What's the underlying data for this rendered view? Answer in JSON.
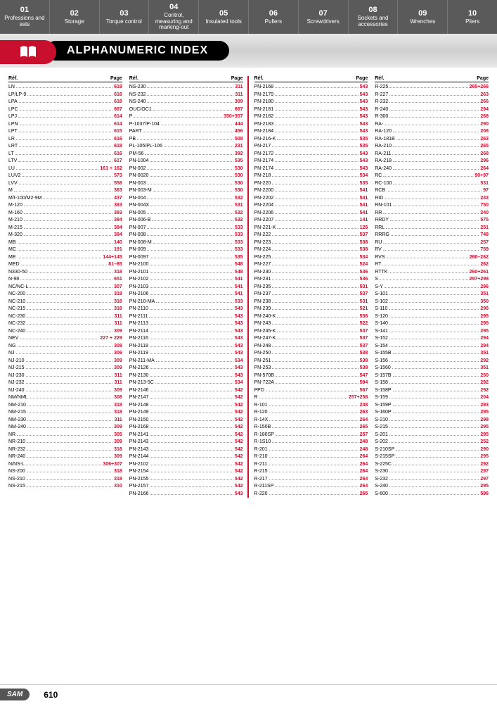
{
  "nav": [
    {
      "num": "01",
      "label": "Professions and sets"
    },
    {
      "num": "02",
      "label": "Storage"
    },
    {
      "num": "03",
      "label": "Torque control"
    },
    {
      "num": "04",
      "label": "Control, measuring and marking-out"
    },
    {
      "num": "05",
      "label": "Insulated tools"
    },
    {
      "num": "06",
      "label": "Pullers"
    },
    {
      "num": "07",
      "label": "Screwdrivers"
    },
    {
      "num": "08",
      "label": "Sockets and accessories"
    },
    {
      "num": "09",
      "label": "Wrenches"
    },
    {
      "num": "10",
      "label": "Pliers"
    }
  ],
  "title": "ALPHANUMERIC INDEX",
  "header_ref": "Réf.",
  "header_page": "Page",
  "columns": [
    [
      {
        "r": "LN",
        "p": "618"
      },
      {
        "r": "LP/LP-9",
        "p": "618"
      },
      {
        "r": "LPA",
        "p": "618"
      },
      {
        "r": "LPC",
        "p": "667"
      },
      {
        "r": "LPJ",
        "p": "614"
      },
      {
        "r": "LPN",
        "p": "614"
      },
      {
        "r": "LPT",
        "p": "615"
      },
      {
        "r": "LR",
        "p": "616"
      },
      {
        "r": "LRT",
        "p": "618"
      },
      {
        "r": "LT",
        "p": "616"
      },
      {
        "r": "LTV",
        "p": "617"
      },
      {
        "r": "LU",
        "p": "161 + 162"
      },
      {
        "r": "LUV2",
        "p": "573"
      },
      {
        "r": "LVV",
        "p": "558"
      },
      {
        "r": "M",
        "p": "383"
      },
      {
        "r": "M/I-100/M2-9M",
        "p": "437"
      },
      {
        "r": "M-120",
        "p": "383"
      },
      {
        "r": "M-160",
        "p": "383"
      },
      {
        "r": "M-210",
        "p": "384"
      },
      {
        "r": "M-215",
        "p": "384"
      },
      {
        "r": "M-320",
        "p": "384"
      },
      {
        "r": "MB",
        "p": "140"
      },
      {
        "r": "MC",
        "p": "191"
      },
      {
        "r": "ME",
        "p": "144+145"
      },
      {
        "r": "MED",
        "p": "81–85"
      },
      {
        "r": "N330-50",
        "p": "318"
      },
      {
        "r": "N-98",
        "p": "651"
      },
      {
        "r": "NC/NC-L",
        "p": "307"
      },
      {
        "r": "NC-200",
        "p": "318"
      },
      {
        "r": "NC-210",
        "p": "318"
      },
      {
        "r": "NC-215",
        "p": "318"
      },
      {
        "r": "NC-230",
        "p": "311"
      },
      {
        "r": "NC-232",
        "p": "311"
      },
      {
        "r": "NC-240",
        "p": "309"
      },
      {
        "r": "NEV",
        "p": "227 + 229"
      },
      {
        "r": "NG",
        "p": "308"
      },
      {
        "r": "NJ",
        "p": "306"
      },
      {
        "r": "NJ-210",
        "p": "309"
      },
      {
        "r": "NJ-215",
        "p": "309"
      },
      {
        "r": "NJ-230",
        "p": "311"
      },
      {
        "r": "NJ-232",
        "p": "311"
      },
      {
        "r": "NJ-240",
        "p": "309"
      },
      {
        "r": "NM/NML",
        "p": "308"
      },
      {
        "r": "NM-210",
        "p": "318"
      },
      {
        "r": "NM-215",
        "p": "318"
      },
      {
        "r": "NM-230",
        "p": "311"
      },
      {
        "r": "NM-240",
        "p": "309"
      },
      {
        "r": "NR",
        "p": "305"
      },
      {
        "r": "NR-210",
        "p": "309"
      },
      {
        "r": "NR-232",
        "p": "318"
      },
      {
        "r": "NR-240",
        "p": "309"
      },
      {
        "r": "N/NS-L",
        "p": "306+307"
      },
      {
        "r": "NS-200",
        "p": "318"
      },
      {
        "r": "NS-210",
        "p": "318"
      },
      {
        "r": "NS-215",
        "p": "310"
      }
    ],
    [
      {
        "r": "NS-230",
        "p": "311"
      },
      {
        "r": "NS-232",
        "p": "311"
      },
      {
        "r": "NS-240",
        "p": "309"
      },
      {
        "r": "OUC/OC1",
        "p": "667"
      },
      {
        "r": "P",
        "p": "350+357"
      },
      {
        "r": "P-1037/P-104",
        "p": "444"
      },
      {
        "r": "PART",
        "p": "456"
      },
      {
        "r": "PB",
        "p": "508"
      },
      {
        "r": "PL-105/PL-106",
        "p": "231"
      },
      {
        "r": "PM-56",
        "p": "392"
      },
      {
        "r": "PN-1004",
        "p": "535"
      },
      {
        "r": "PN-002",
        "p": "530"
      },
      {
        "r": "PN-0020",
        "p": "530"
      },
      {
        "r": "PN-003",
        "p": "530"
      },
      {
        "r": "PN-003-M",
        "p": "530"
      },
      {
        "r": "PN-004",
        "p": "532"
      },
      {
        "r": "PN-004X",
        "p": "531"
      },
      {
        "r": "PN-005",
        "p": "532"
      },
      {
        "r": "PN-006-B",
        "p": "532"
      },
      {
        "r": "PN-007",
        "p": "533"
      },
      {
        "r": "PN-008",
        "p": "533"
      },
      {
        "r": "PN-008-M",
        "p": "533"
      },
      {
        "r": "PN-009",
        "p": "533"
      },
      {
        "r": "PN-0097",
        "p": "535"
      },
      {
        "r": "PN-2100",
        "p": "548"
      },
      {
        "r": "PN-2101",
        "p": "548"
      },
      {
        "r": "PN-2102",
        "p": "541"
      },
      {
        "r": "PN-2103",
        "p": "541"
      },
      {
        "r": "PN-2106",
        "p": "541"
      },
      {
        "r": "PN-210-MA",
        "p": "533"
      },
      {
        "r": "PN-2110",
        "p": "543"
      },
      {
        "r": "PN-2111",
        "p": "543"
      },
      {
        "r": "PN-2113",
        "p": "543"
      },
      {
        "r": "PN-2114",
        "p": "543"
      },
      {
        "r": "PN-2116",
        "p": "543"
      },
      {
        "r": "PN-2118",
        "p": "543"
      },
      {
        "r": "PN-2119",
        "p": "543"
      },
      {
        "r": "PN-211-MA",
        "p": "534"
      },
      {
        "r": "PN-2126",
        "p": "543"
      },
      {
        "r": "PN-2130",
        "p": "543"
      },
      {
        "r": "PN-213-5C",
        "p": "534"
      },
      {
        "r": "PN-2146",
        "p": "542"
      },
      {
        "r": "PN-2147",
        "p": "542"
      },
      {
        "r": "PN-2148",
        "p": "542"
      },
      {
        "r": "PN-2149",
        "p": "542"
      },
      {
        "r": "PN-2150",
        "p": "542"
      },
      {
        "r": "PN-2168",
        "p": "542"
      },
      {
        "r": "PN-2141",
        "p": "542"
      },
      {
        "r": "PN-2143",
        "p": "542"
      },
      {
        "r": "PN-2143",
        "p": "542"
      },
      {
        "r": "PN-2144",
        "p": "542"
      },
      {
        "r": "PN-2102",
        "p": "542"
      },
      {
        "r": "PN-2154",
        "p": "542"
      },
      {
        "r": "PN-2155",
        "p": "542"
      },
      {
        "r": "PN-2157",
        "p": "542"
      },
      {
        "r": "PN-2166",
        "p": "543"
      }
    ],
    [
      {
        "r": "PN-2168",
        "p": "543"
      },
      {
        "r": "PN-2179",
        "p": "543"
      },
      {
        "r": "PN-2180",
        "p": "543"
      },
      {
        "r": "PN-2181",
        "p": "543"
      },
      {
        "r": "PN-2182",
        "p": "543"
      },
      {
        "r": "PN-2183",
        "p": "543"
      },
      {
        "r": "PN-2184",
        "p": "543"
      },
      {
        "r": "PN-216-K",
        "p": "535"
      },
      {
        "r": "PN-217",
        "p": "535"
      },
      {
        "r": "PN-2172",
        "p": "543"
      },
      {
        "r": "PN-2174",
        "p": "543"
      },
      {
        "r": "PN-2174",
        "p": "543"
      },
      {
        "r": "PN-218",
        "p": "534"
      },
      {
        "r": "PN-220",
        "p": "535"
      },
      {
        "r": "PN-2200",
        "p": "541"
      },
      {
        "r": "PN-2202",
        "p": "541"
      },
      {
        "r": "PN-2204",
        "p": "541"
      },
      {
        "r": "PN-2206",
        "p": "541"
      },
      {
        "r": "PN-2207",
        "p": "141"
      },
      {
        "r": "PN-221-K",
        "p": "126"
      },
      {
        "r": "PN-222",
        "p": "537"
      },
      {
        "r": "PN-223",
        "p": "538"
      },
      {
        "r": "PN-224",
        "p": "538"
      },
      {
        "r": "PN-225",
        "p": "534"
      },
      {
        "r": "PN-227",
        "p": "524"
      },
      {
        "r": "PN-230",
        "p": "536"
      },
      {
        "r": "PN-231",
        "p": "536"
      },
      {
        "r": "PN-235",
        "p": "531"
      },
      {
        "r": "PN-237",
        "p": "537"
      },
      {
        "r": "PN-238",
        "p": "531"
      },
      {
        "r": "PN-239",
        "p": "521"
      },
      {
        "r": "PN-240-K",
        "p": "536"
      },
      {
        "r": "PN-243",
        "p": "522"
      },
      {
        "r": "PN-245-K",
        "p": "537"
      },
      {
        "r": "PN-247-K",
        "p": "537"
      },
      {
        "r": "PN-248",
        "p": "537"
      },
      {
        "r": "PN-250",
        "p": "538"
      },
      {
        "r": "PN-251",
        "p": "538"
      },
      {
        "r": "PN-253",
        "p": "538"
      },
      {
        "r": "PN-570B",
        "p": "547"
      },
      {
        "r": "PN-722A",
        "p": "594"
      },
      {
        "r": "PPD",
        "p": "567"
      },
      {
        "r": "R",
        "p": "257+258"
      },
      {
        "r": "R-101",
        "p": "248"
      },
      {
        "r": "R-120",
        "p": "263"
      },
      {
        "r": "R-14X",
        "p": "264"
      },
      {
        "r": "R-150B",
        "p": "265"
      },
      {
        "r": "R-180SP",
        "p": "257"
      },
      {
        "r": "R-1S10",
        "p": "248"
      },
      {
        "r": "R-201",
        "p": "248"
      },
      {
        "r": "R-210",
        "p": "264"
      },
      {
        "r": "R-211",
        "p": "264"
      },
      {
        "r": "R-215",
        "p": "264"
      },
      {
        "r": "R-217",
        "p": "264"
      },
      {
        "r": "R-211SP",
        "p": "264"
      },
      {
        "r": "R-220",
        "p": "265"
      }
    ],
    [
      {
        "r": "R-225",
        "p": "265+266"
      },
      {
        "r": "R-227",
        "p": "263"
      },
      {
        "r": "R-232",
        "p": "266"
      },
      {
        "r": "R-240",
        "p": "294"
      },
      {
        "r": "R-300",
        "p": "268"
      },
      {
        "r": "RA-",
        "p": "290"
      },
      {
        "r": "RA-120",
        "p": "208"
      },
      {
        "r": "RA-181B",
        "p": "263"
      },
      {
        "r": "RA-210",
        "p": "265"
      },
      {
        "r": "RA-211",
        "p": "268"
      },
      {
        "r": "RA-218",
        "p": "296"
      },
      {
        "r": "RA-240",
        "p": "264"
      },
      {
        "r": "RC",
        "p": "90+97"
      },
      {
        "r": "RC-100",
        "p": "531"
      },
      {
        "r": "RCB",
        "p": "97"
      },
      {
        "r": "RID",
        "p": "243"
      },
      {
        "r": "RN-101",
        "p": "750"
      },
      {
        "r": "RR",
        "p": "240"
      },
      {
        "r": "RRDY",
        "p": "575"
      },
      {
        "r": "RRL",
        "p": "251"
      },
      {
        "r": "RRRG",
        "p": "748"
      },
      {
        "r": "RU",
        "p": "257"
      },
      {
        "r": "RV",
        "p": "759"
      },
      {
        "r": "RVS",
        "p": "260–262"
      },
      {
        "r": "RT",
        "p": "262"
      },
      {
        "r": "RTTK",
        "p": "260+261"
      },
      {
        "r": "S",
        "p": "297+298"
      },
      {
        "r": "S-Y",
        "p": "296"
      },
      {
        "r": "S-101",
        "p": "351"
      },
      {
        "r": "S-102",
        "p": "350"
      },
      {
        "r": "S-110",
        "p": "296"
      },
      {
        "r": "S-120",
        "p": "295"
      },
      {
        "r": "S-140",
        "p": "295"
      },
      {
        "r": "S-141",
        "p": "295"
      },
      {
        "r": "S-152",
        "p": "294"
      },
      {
        "r": "S-154",
        "p": "294"
      },
      {
        "r": "S-155B",
        "p": "351"
      },
      {
        "r": "S-156",
        "p": "292"
      },
      {
        "r": "S-1560",
        "p": "351"
      },
      {
        "r": "S-157B",
        "p": "250"
      },
      {
        "r": "S-158",
        "p": "292"
      },
      {
        "r": "S-158P",
        "p": "292"
      },
      {
        "r": "S-159",
        "p": "204"
      },
      {
        "r": "S-159P",
        "p": "293"
      },
      {
        "r": "S-160P",
        "p": "295"
      },
      {
        "r": "S-210",
        "p": "298"
      },
      {
        "r": "S-215",
        "p": "295"
      },
      {
        "r": "S-201",
        "p": "295"
      },
      {
        "r": "S-202",
        "p": "252"
      },
      {
        "r": "S-210SP",
        "p": "290"
      },
      {
        "r": "S-215SP",
        "p": "295"
      },
      {
        "r": "S-225C",
        "p": "292"
      },
      {
        "r": "S-230",
        "p": "297"
      },
      {
        "r": "S-232",
        "p": "297"
      },
      {
        "r": "S-240",
        "p": "295"
      },
      {
        "r": "S-600",
        "p": "596"
      }
    ]
  ],
  "footer": {
    "logo": "SAM",
    "page": "610"
  }
}
